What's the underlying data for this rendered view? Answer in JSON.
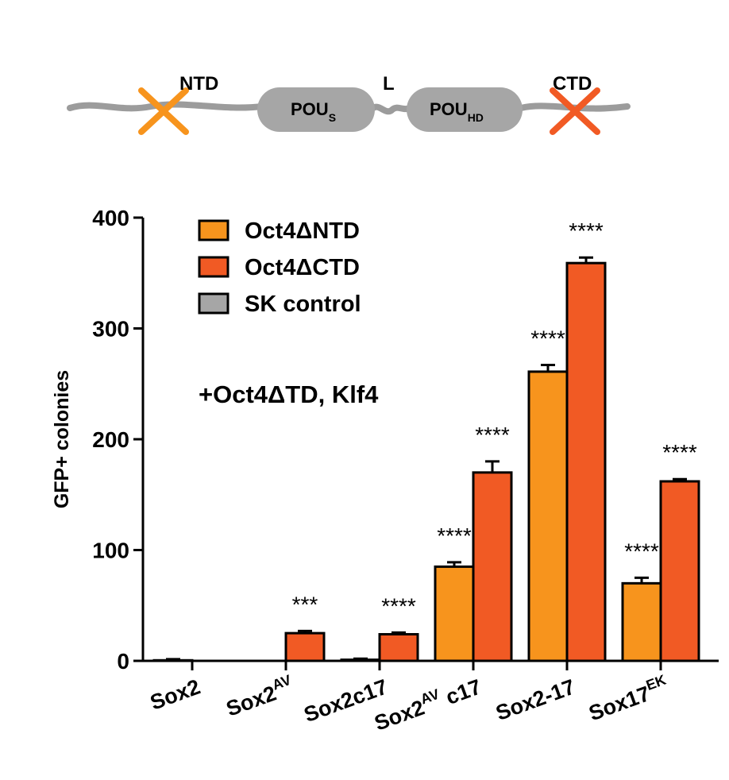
{
  "diagram": {
    "labels": {
      "ntd": "NTD",
      "pou_s": "POU",
      "pou_s_sub": "S",
      "linker": "L",
      "pou_hd": "POU",
      "pou_hd_sub": "HD",
      "ctd": "CTD"
    },
    "colors": {
      "backbone": "#9c9c9c",
      "domain_fill": "#a6a6a6",
      "ntd_cross": "#f7941d",
      "ctd_cross": "#f15a24"
    }
  },
  "chart_data": {
    "type": "bar",
    "title": "",
    "annotation": "+Oct4ΔTD, Klf4",
    "xlabel": "",
    "ylabel": "GFP+ colonies",
    "ylim": [
      0,
      400
    ],
    "yticks": [
      0,
      100,
      200,
      300,
      400
    ],
    "categories": [
      {
        "base": "Sox2",
        "sup": ""
      },
      {
        "base": "Sox2",
        "sup": "AV"
      },
      {
        "base": "Sox2c17",
        "sup": ""
      },
      {
        "base": "Sox2",
        "sup": "AV",
        "tail": " c17"
      },
      {
        "base": "Sox2-17",
        "sup": ""
      },
      {
        "base": "Sox17",
        "sup": "EK"
      }
    ],
    "series": [
      {
        "name": "Oct4ΔNTD",
        "color": "#f7941d",
        "values": [
          0.5,
          0,
          1,
          85,
          261,
          70
        ],
        "errors": [
          1,
          0,
          1,
          4,
          6,
          5
        ],
        "significance": [
          "",
          "",
          "",
          "****",
          "****",
          "****"
        ]
      },
      {
        "name": "Oct4ΔCTD",
        "color": "#f15a24",
        "values": [
          0,
          25,
          24,
          170,
          359,
          162
        ],
        "errors": [
          0,
          2,
          1.5,
          10,
          5,
          2
        ],
        "significance": [
          "",
          "***",
          "****",
          "****",
          "****",
          "****"
        ]
      },
      {
        "name": "SK control",
        "color": "#a6a6a6",
        "values": [
          0,
          0,
          0,
          0,
          0,
          0
        ],
        "errors": [
          0,
          0,
          0,
          0,
          0,
          0
        ],
        "significance": [
          "",
          "",
          "",
          "",
          "",
          ""
        ]
      }
    ],
    "legend_position": "top-left",
    "grid": false
  }
}
